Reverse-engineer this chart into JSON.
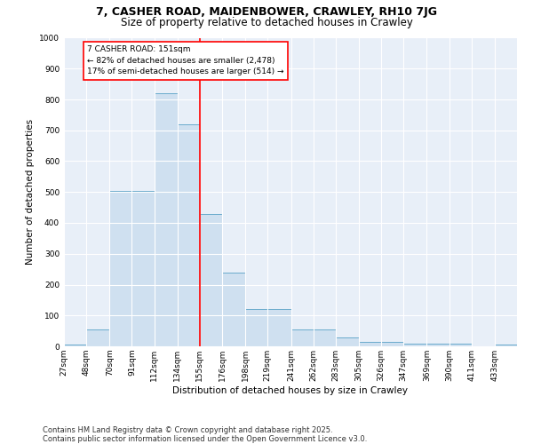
{
  "title_line1": "7, CASHER ROAD, MAIDENBOWER, CRAWLEY, RH10 7JG",
  "title_line2": "Size of property relative to detached houses in Crawley",
  "xlabel": "Distribution of detached houses by size in Crawley",
  "ylabel": "Number of detached properties",
  "bar_color": "#cfe0f0",
  "bar_edge_color": "#6aabcc",
  "background_color": "#e8eff8",
  "grid_color": "#ffffff",
  "red_line_x": 155,
  "annotation_text": "7 CASHER ROAD: 151sqm\n← 82% of detached houses are smaller (2,478)\n17% of semi-detached houses are larger (514) →",
  "bins": [
    27,
    48,
    70,
    91,
    112,
    134,
    155,
    176,
    198,
    219,
    241,
    262,
    283,
    305,
    326,
    347,
    369,
    390,
    411,
    433,
    454
  ],
  "values": [
    5,
    55,
    505,
    505,
    820,
    720,
    430,
    240,
    120,
    120,
    55,
    55,
    30,
    15,
    15,
    10,
    10,
    10,
    0,
    5,
    0
  ],
  "ylim": [
    0,
    1000
  ],
  "yticks": [
    0,
    100,
    200,
    300,
    400,
    500,
    600,
    700,
    800,
    900,
    1000
  ],
  "footer_line1": "Contains HM Land Registry data © Crown copyright and database right 2025.",
  "footer_line2": "Contains public sector information licensed under the Open Government Licence v3.0.",
  "title_fontsize": 9,
  "subtitle_fontsize": 8.5,
  "axis_label_fontsize": 7.5,
  "tick_fontsize": 6.5,
  "annotation_fontsize": 6.5,
  "footer_fontsize": 6.0
}
